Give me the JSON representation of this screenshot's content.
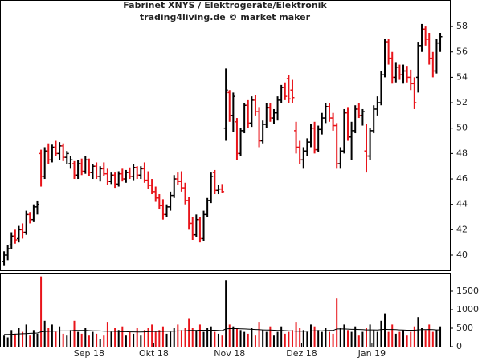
{
  "chart_data": {
    "type": "ohlc",
    "title": "Fabrinet XNYS / Elektrogeräte/Elektronik",
    "subtitle": "trading4living.de © market maker",
    "up_color": "#000000",
    "down_color": "#e8141a",
    "ma_color": "#000000",
    "xlim": [
      -1.1,
      120.6
    ],
    "xticks": [
      {
        "value": 23,
        "label": "Sep 18"
      },
      {
        "value": 40.5,
        "label": "Okt 18"
      },
      {
        "value": 61,
        "label": "Nov 18"
      },
      {
        "value": 80.5,
        "label": "Dez 18"
      },
      {
        "value": 99.5,
        "label": "Jan 19"
      }
    ],
    "ylim": [
      38.8,
      58.7
    ],
    "yticks": [
      40,
      42,
      44,
      46,
      48,
      50,
      52,
      54,
      56,
      58
    ],
    "y2lim": [
      0,
      2000
    ],
    "y2ticks": [
      0,
      500,
      1000,
      1500
    ],
    "open": [
      39.5,
      40.0,
      40.8,
      41.5,
      41.3,
      42.0,
      41.8,
      43.2,
      42.8,
      43.8,
      48.0,
      46.2,
      48.2,
      47.5,
      48.5,
      48.0,
      48.6,
      47.7,
      47.2,
      47.2,
      46.3,
      47.2,
      46.6,
      47.5,
      46.5,
      47.0,
      46.2,
      46.8,
      46.4,
      45.8,
      46.3,
      45.6,
      46.4,
      46.0,
      46.5,
      46.2,
      46.9,
      46.3,
      46.8,
      45.9,
      45.5,
      45.0,
      44.5,
      43.9,
      43.2,
      43.8,
      44.7,
      46.0,
      45.8,
      45.3,
      44.3,
      42.5,
      41.6,
      42.8,
      41.3,
      43.2,
      44.3,
      46.5,
      45.1,
      45.2,
      50.0,
      52.8,
      51.0,
      50.5,
      48.0,
      49.8,
      51.8,
      50.4,
      52.2,
      51.3,
      49.0,
      50.3,
      51.6,
      50.8,
      51.2,
      52.2,
      53.2,
      53.9,
      53.0,
      49.8,
      48.5,
      47.5,
      48.2,
      48.9,
      50.0,
      48.3,
      49.9,
      50.8,
      51.7,
      50.8,
      50.2,
      47.2,
      48.2,
      51.2,
      49.3,
      49.8,
      51.5,
      51.0,
      48.2,
      47.8,
      49.8,
      51.5,
      52.0,
      54.2,
      56.8,
      55.5,
      54.0,
      54.8,
      54.2,
      54.5,
      54.0,
      53.5,
      54.0,
      56.5,
      57.8,
      57.0,
      55.5,
      54.5,
      56.7
    ],
    "high": [
      40.3,
      40.8,
      41.8,
      42.0,
      42.3,
      42.5,
      43.5,
      43.4,
      44.0,
      44.3,
      48.3,
      48.5,
      48.8,
      48.7,
      49.0,
      48.9,
      48.8,
      48.2,
      47.8,
      47.4,
      47.5,
      47.6,
      47.8,
      47.6,
      47.2,
      47.3,
      47.0,
      47.3,
      46.8,
      46.5,
      46.5,
      46.6,
      46.8,
      46.7,
      46.9,
      47.2,
      47.0,
      47.0,
      47.3,
      46.6,
      46.0,
      45.4,
      44.8,
      44.4,
      44.0,
      45.0,
      46.3,
      46.5,
      46.6,
      45.7,
      44.6,
      43.0,
      43.2,
      43.0,
      43.5,
      44.5,
      46.5,
      46.7,
      45.5,
      45.6,
      54.7,
      53.0,
      52.8,
      50.8,
      50.0,
      52.0,
      52.2,
      52.5,
      52.6,
      51.6,
      50.6,
      52.0,
      52.0,
      51.5,
      52.5,
      53.4,
      53.6,
      54.2,
      53.8,
      50.5,
      49.0,
      48.5,
      49.2,
      50.3,
      50.5,
      50.2,
      51.2,
      52.0,
      52.0,
      51.2,
      50.4,
      48.5,
      51.5,
      51.6,
      50.5,
      51.8,
      52.0,
      51.5,
      50.3,
      50.0,
      51.8,
      52.5,
      54.5,
      57.0,
      57.0,
      56.0,
      55.2,
      55.0,
      55.0,
      54.9,
      54.6,
      54.0,
      56.8,
      58.2,
      58.0,
      57.5,
      56.0,
      57.0,
      57.5
    ],
    "low": [
      39.2,
      39.6,
      40.5,
      40.9,
      41.0,
      41.3,
      41.6,
      42.5,
      42.6,
      43.2,
      45.4,
      46.0,
      47.2,
      47.3,
      47.8,
      47.5,
      47.4,
      47.2,
      46.8,
      46.0,
      46.0,
      46.3,
      46.4,
      46.2,
      46.0,
      46.0,
      45.8,
      46.2,
      45.5,
      45.6,
      45.3,
      45.4,
      45.8,
      45.7,
      46.0,
      45.9,
      46.0,
      46.0,
      45.7,
      45.2,
      44.8,
      44.2,
      43.6,
      42.8,
      43.0,
      43.5,
      44.5,
      45.5,
      45.0,
      44.0,
      42.0,
      41.2,
      41.4,
      41.0,
      41.1,
      43.0,
      44.1,
      44.8,
      44.8,
      44.9,
      49.0,
      50.5,
      49.7,
      47.5,
      47.8,
      49.6,
      50.0,
      50.1,
      51.0,
      48.5,
      48.8,
      50.0,
      50.5,
      50.3,
      50.6,
      52.0,
      52.2,
      52.0,
      52.0,
      48.0,
      47.2,
      46.8,
      47.8,
      48.5,
      48.0,
      48.1,
      49.5,
      50.4,
      50.5,
      49.8,
      46.8,
      46.8,
      48.0,
      49.0,
      47.5,
      49.6,
      50.8,
      50.2,
      46.5,
      47.5,
      49.6,
      51.0,
      51.8,
      54.0,
      55.0,
      53.5,
      53.6,
      53.8,
      53.5,
      53.6,
      53.0,
      51.5,
      52.8,
      56.0,
      56.5,
      55.0,
      54.0,
      54.3,
      56.0
    ],
    "close": [
      40.0,
      40.5,
      41.5,
      41.2,
      42.0,
      41.8,
      43.2,
      42.8,
      43.8,
      44.0,
      46.2,
      48.2,
      47.5,
      48.5,
      48.0,
      48.6,
      47.7,
      48.0,
      47.5,
      46.3,
      47.2,
      46.6,
      47.5,
      46.5,
      47.0,
      46.2,
      46.8,
      46.4,
      45.8,
      46.3,
      45.6,
      46.4,
      46.0,
      46.5,
      46.2,
      46.9,
      46.3,
      46.8,
      45.9,
      45.5,
      45.0,
      44.5,
      43.9,
      43.2,
      43.8,
      44.7,
      46.0,
      45.8,
      45.3,
      44.3,
      42.5,
      41.6,
      42.8,
      41.3,
      43.2,
      44.3,
      46.2,
      45.1,
      45.2,
      45.0,
      53.0,
      51.0,
      52.5,
      48.0,
      49.8,
      51.8,
      50.4,
      52.2,
      51.3,
      49.0,
      50.3,
      51.6,
      50.8,
      51.2,
      52.2,
      53.2,
      52.5,
      52.3,
      52.4,
      48.5,
      47.5,
      48.2,
      48.9,
      50.0,
      48.3,
      49.9,
      50.8,
      51.7,
      50.8,
      50.2,
      47.2,
      48.2,
      51.2,
      49.3,
      49.8,
      51.5,
      51.0,
      51.3,
      47.8,
      49.8,
      51.5,
      52.0,
      54.2,
      56.8,
      55.5,
      54.0,
      54.8,
      54.2,
      54.5,
      54.0,
      53.5,
      52.0,
      56.5,
      57.8,
      57.0,
      55.5,
      54.5,
      56.7,
      57.2
    ],
    "volume": [
      300,
      250,
      450,
      350,
      500,
      400,
      600,
      300,
      450,
      350,
      1900,
      700,
      500,
      600,
      400,
      550,
      350,
      300,
      450,
      700,
      400,
      350,
      500,
      300,
      400,
      350,
      200,
      300,
      650,
      400,
      500,
      450,
      550,
      300,
      400,
      350,
      500,
      300,
      450,
      500,
      600,
      400,
      450,
      550,
      350,
      400,
      500,
      600,
      450,
      500,
      750,
      500,
      450,
      600,
      400,
      500,
      550,
      400,
      350,
      300,
      1800,
      600,
      550,
      500,
      450,
      400,
      350,
      500,
      300,
      650,
      450,
      400,
      550,
      300,
      400,
      550,
      350,
      400,
      450,
      650,
      500,
      450,
      400,
      600,
      550,
      450,
      400,
      500,
      400,
      350,
      1300,
      500,
      600,
      450,
      400,
      550,
      300,
      400,
      500,
      600,
      450,
      400,
      700,
      900,
      400,
      600,
      350,
      400,
      450,
      300,
      400,
      550,
      800,
      500,
      450,
      600,
      400,
      450,
      550
    ],
    "volume_ma": [
      330,
      330,
      335,
      340,
      345,
      350,
      355,
      360,
      365,
      370,
      400,
      410,
      415,
      420,
      420,
      425,
      425,
      425,
      430,
      440,
      440,
      440,
      440,
      435,
      430,
      430,
      425,
      420,
      420,
      415,
      415,
      410,
      405,
      405,
      400,
      400,
      395,
      395,
      400,
      405,
      410,
      410,
      410,
      415,
      415,
      415,
      420,
      425,
      425,
      430,
      440,
      440,
      440,
      445,
      445,
      445,
      445,
      445,
      440,
      435,
      480,
      490,
      490,
      490,
      485,
      480,
      475,
      470,
      465,
      460,
      455,
      450,
      450,
      445,
      440,
      440,
      435,
      430,
      425,
      420,
      420,
      420,
      420,
      425,
      430,
      430,
      430,
      435,
      440,
      440,
      480,
      480,
      480,
      475,
      470,
      470,
      465,
      460,
      455,
      455,
      455,
      450,
      460,
      470,
      465,
      465,
      460,
      455,
      450,
      445,
      445,
      445,
      455,
      460,
      460,
      465,
      460,
      455,
      455
    ]
  }
}
